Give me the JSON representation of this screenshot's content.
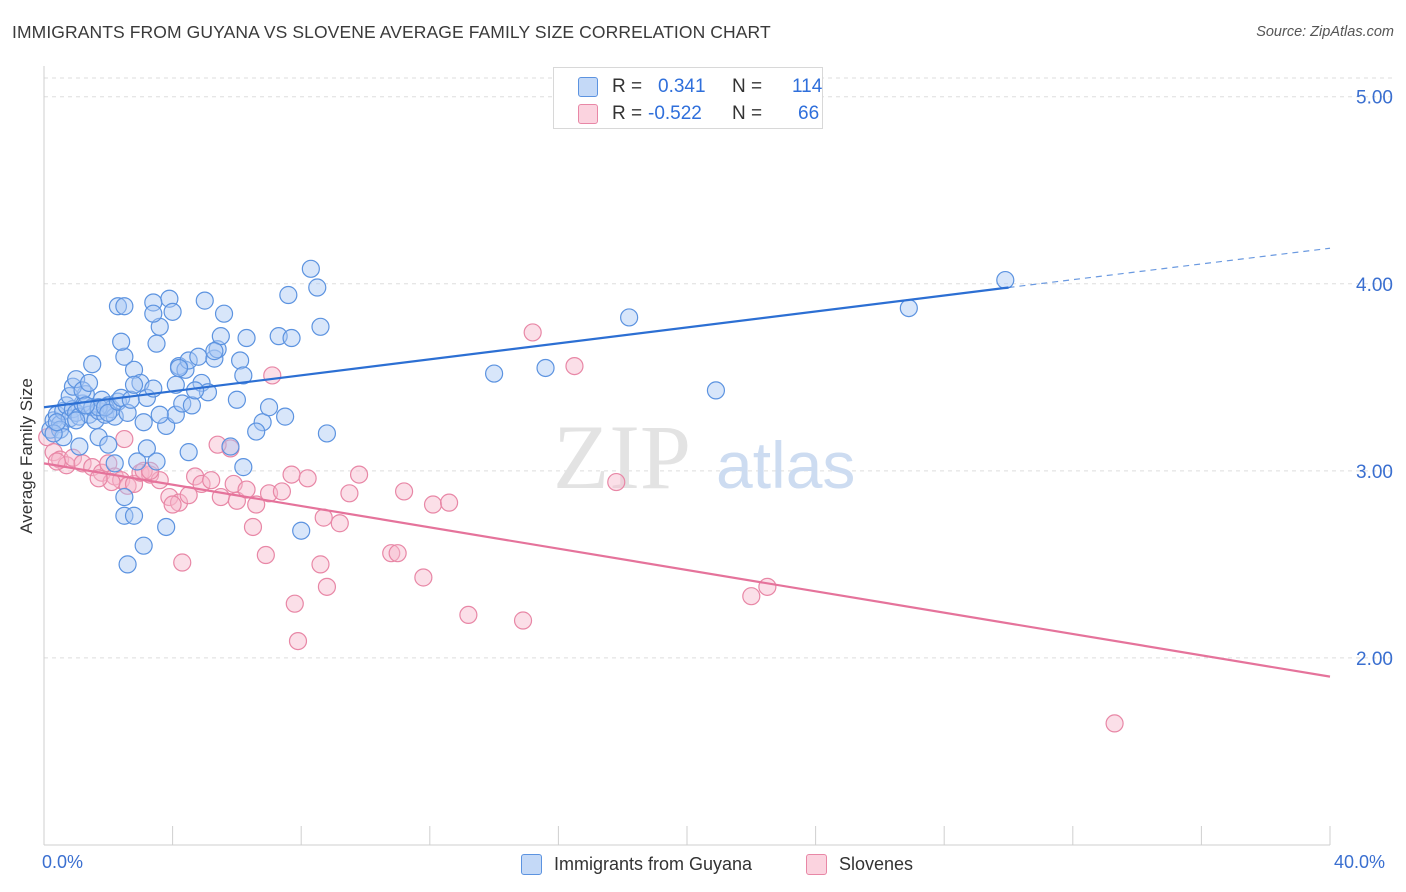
{
  "header": {
    "title": "IMMIGRANTS FROM GUYANA VS SLOVENE AVERAGE FAMILY SIZE CORRELATION CHART",
    "source": "Source: ZipAtlas.com"
  },
  "colors": {
    "blue_fill": "#a9c8f5",
    "blue_stroke": "#5c93e0",
    "blue_line": "#2c6fd3",
    "pink_fill": "#f7b8cb",
    "pink_stroke": "#e887a6",
    "pink_line": "#e5739b",
    "axis_text": "#3a6fd0",
    "grid": "#dddddd"
  },
  "legend_top": {
    "rows": [
      {
        "r_label": "R =",
        "r_value": "0.341",
        "n_label": "N =",
        "n_value": "114"
      },
      {
        "r_label": "R =",
        "r_value": "-0.522",
        "n_label": "N =",
        "n_value": "66"
      }
    ]
  },
  "legend_bottom": {
    "items": [
      {
        "label": "Immigrants from Guyana"
      },
      {
        "label": "Slovenes"
      }
    ]
  },
  "watermark": {
    "left": "ZIP",
    "right": "atlas"
  },
  "chart_data": {
    "type": "scatter",
    "title": "IMMIGRANTS FROM GUYANA VS SLOVENE AVERAGE FAMILY SIZE CORRELATION CHART",
    "xlabel": "",
    "ylabel": "Average Family Size",
    "xlim": [
      0,
      40
    ],
    "ylim": [
      1.0,
      5.1
    ],
    "x_tick_labels": [
      "0.0%",
      "40.0%"
    ],
    "y_ticks": [
      2.0,
      3.0,
      4.0,
      5.0
    ],
    "y_tick_labels": [
      "2.00",
      "3.00",
      "4.00",
      "5.00"
    ],
    "grid": true,
    "legend_position": "top-center",
    "series": [
      {
        "name": "Immigrants from Guyana",
        "r": 0.341,
        "n": 114,
        "trend": {
          "x": [
            0.0,
            30.0
          ],
          "y": [
            3.34,
            3.98
          ],
          "extrapolated": {
            "x": [
              30.0,
              40.0
            ],
            "y": [
              3.98,
              4.19
            ]
          }
        },
        "points": [
          [
            0.2,
            3.22
          ],
          [
            0.3,
            3.27
          ],
          [
            0.4,
            3.3
          ],
          [
            0.5,
            3.25
          ],
          [
            0.6,
            3.32
          ],
          [
            0.7,
            3.35
          ],
          [
            0.8,
            3.28
          ],
          [
            0.9,
            3.33
          ],
          [
            1.0,
            3.31
          ],
          [
            1.1,
            3.29
          ],
          [
            1.2,
            3.36
          ],
          [
            1.3,
            3.41
          ],
          [
            1.4,
            3.3
          ],
          [
            1.5,
            3.34
          ],
          [
            1.6,
            3.27
          ],
          [
            1.7,
            3.32
          ],
          [
            1.8,
            3.38
          ],
          [
            1.9,
            3.3
          ],
          [
            2.0,
            3.35
          ],
          [
            2.1,
            3.33
          ],
          [
            2.2,
            3.29
          ],
          [
            0.5,
            3.22
          ],
          [
            0.6,
            3.18
          ],
          [
            0.8,
            3.4
          ],
          [
            0.9,
            3.45
          ],
          [
            1.0,
            3.49
          ],
          [
            1.2,
            3.43
          ],
          [
            1.4,
            3.47
          ],
          [
            1.5,
            3.57
          ],
          [
            1.7,
            3.34
          ],
          [
            1.9,
            3.34
          ],
          [
            2.0,
            3.31
          ],
          [
            2.3,
            3.37
          ],
          [
            2.4,
            3.39
          ],
          [
            2.5,
            3.61
          ],
          [
            2.6,
            3.31
          ],
          [
            2.7,
            3.38
          ],
          [
            2.8,
            3.54
          ],
          [
            3.0,
            3.47
          ],
          [
            3.1,
            3.26
          ],
          [
            3.2,
            3.39
          ],
          [
            3.4,
            3.44
          ],
          [
            3.5,
            3.68
          ],
          [
            3.6,
            3.77
          ],
          [
            3.8,
            3.24
          ],
          [
            3.9,
            3.92
          ],
          [
            4.0,
            3.85
          ],
          [
            4.1,
            3.3
          ],
          [
            4.2,
            3.56
          ],
          [
            4.3,
            3.36
          ],
          [
            4.4,
            3.54
          ],
          [
            4.5,
            3.59
          ],
          [
            4.6,
            3.35
          ],
          [
            4.8,
            3.61
          ],
          [
            4.9,
            3.47
          ],
          [
            5.0,
            3.91
          ],
          [
            5.1,
            3.42
          ],
          [
            5.3,
            3.6
          ],
          [
            5.4,
            3.65
          ],
          [
            5.5,
            3.72
          ],
          [
            5.6,
            3.84
          ],
          [
            6.1,
            3.59
          ],
          [
            6.3,
            3.71
          ],
          [
            6.8,
            3.26
          ],
          [
            7.0,
            3.34
          ],
          [
            7.3,
            3.72
          ],
          [
            7.6,
            3.94
          ],
          [
            7.7,
            3.71
          ],
          [
            8.3,
            4.08
          ],
          [
            8.5,
            3.98
          ],
          [
            8.6,
            3.77
          ],
          [
            2.3,
            3.88
          ],
          [
            2.5,
            3.88
          ],
          [
            3.4,
            3.9
          ],
          [
            2.4,
            3.69
          ],
          [
            3.4,
            3.84
          ],
          [
            4.2,
            3.55
          ],
          [
            5.3,
            3.64
          ],
          [
            6.0,
            3.38
          ],
          [
            6.6,
            3.21
          ],
          [
            3.2,
            3.12
          ],
          [
            4.5,
            3.1
          ],
          [
            6.2,
            3.02
          ],
          [
            2.5,
            2.86
          ],
          [
            3.1,
            2.6
          ],
          [
            2.2,
            3.04
          ],
          [
            2.9,
            3.05
          ],
          [
            3.8,
            2.7
          ],
          [
            2.5,
            2.76
          ],
          [
            2.8,
            2.76
          ],
          [
            2.6,
            2.5
          ],
          [
            8.0,
            2.68
          ],
          [
            8.8,
            3.2
          ],
          [
            14.0,
            3.52
          ],
          [
            15.6,
            3.55
          ],
          [
            18.2,
            3.82
          ],
          [
            20.9,
            3.43
          ],
          [
            26.9,
            3.87
          ],
          [
            29.9,
            4.02
          ],
          [
            1.7,
            3.18
          ],
          [
            0.3,
            3.2
          ],
          [
            0.4,
            3.26
          ],
          [
            1.0,
            3.27
          ],
          [
            1.3,
            3.35
          ],
          [
            3.6,
            3.3
          ],
          [
            4.1,
            3.46
          ],
          [
            5.8,
            3.13
          ],
          [
            6.2,
            3.51
          ],
          [
            7.5,
            3.29
          ],
          [
            2.0,
            3.14
          ],
          [
            2.8,
            3.46
          ],
          [
            3.5,
            3.05
          ],
          [
            4.7,
            3.43
          ],
          [
            1.1,
            3.13
          ]
        ]
      },
      {
        "name": "Slovenes",
        "r": -0.522,
        "n": 66,
        "trend": {
          "x": [
            0.0,
            40.0
          ],
          "y": [
            3.04,
            1.9
          ]
        },
        "points": [
          [
            0.1,
            3.18
          ],
          [
            0.3,
            3.1
          ],
          [
            0.5,
            3.06
          ],
          [
            0.7,
            3.03
          ],
          [
            0.9,
            3.07
          ],
          [
            1.2,
            3.04
          ],
          [
            1.5,
            3.02
          ],
          [
            1.8,
            2.99
          ],
          [
            2.0,
            3.04
          ],
          [
            2.2,
            2.97
          ],
          [
            2.4,
            2.95
          ],
          [
            2.6,
            2.92
          ],
          [
            2.8,
            2.93
          ],
          [
            3.0,
            2.99
          ],
          [
            3.3,
            2.98
          ],
          [
            3.6,
            2.95
          ],
          [
            3.9,
            2.86
          ],
          [
            4.2,
            2.83
          ],
          [
            4.5,
            2.87
          ],
          [
            4.7,
            2.97
          ],
          [
            4.9,
            2.93
          ],
          [
            5.2,
            2.95
          ],
          [
            5.5,
            2.86
          ],
          [
            5.9,
            2.93
          ],
          [
            6.0,
            2.84
          ],
          [
            6.3,
            2.9
          ],
          [
            6.6,
            2.82
          ],
          [
            7.0,
            2.88
          ],
          [
            7.4,
            2.89
          ],
          [
            7.7,
            2.98
          ],
          [
            8.2,
            2.96
          ],
          [
            8.7,
            2.75
          ],
          [
            9.2,
            2.72
          ],
          [
            9.8,
            2.98
          ],
          [
            10.8,
            2.56
          ],
          [
            11.2,
            2.89
          ],
          [
            12.1,
            2.82
          ],
          [
            12.6,
            2.83
          ],
          [
            13.2,
            2.23
          ],
          [
            14.9,
            2.2
          ],
          [
            15.2,
            3.74
          ],
          [
            16.5,
            3.56
          ],
          [
            17.8,
            2.94
          ],
          [
            22.0,
            2.33
          ],
          [
            22.5,
            2.38
          ],
          [
            33.3,
            1.65
          ],
          [
            5.8,
            3.12
          ],
          [
            7.1,
            3.51
          ],
          [
            7.8,
            2.29
          ],
          [
            7.9,
            2.09
          ],
          [
            8.6,
            2.5
          ],
          [
            8.8,
            2.38
          ],
          [
            11.0,
            2.56
          ],
          [
            11.8,
            2.43
          ],
          [
            4.3,
            2.51
          ],
          [
            5.4,
            3.14
          ],
          [
            2.5,
            3.17
          ],
          [
            6.9,
            2.55
          ],
          [
            3.1,
            3.0
          ],
          [
            3.3,
            3.0
          ],
          [
            2.1,
            2.94
          ],
          [
            0.4,
            3.05
          ],
          [
            1.7,
            2.96
          ],
          [
            4.0,
            2.82
          ],
          [
            6.5,
            2.7
          ],
          [
            9.5,
            2.88
          ]
        ]
      }
    ]
  }
}
